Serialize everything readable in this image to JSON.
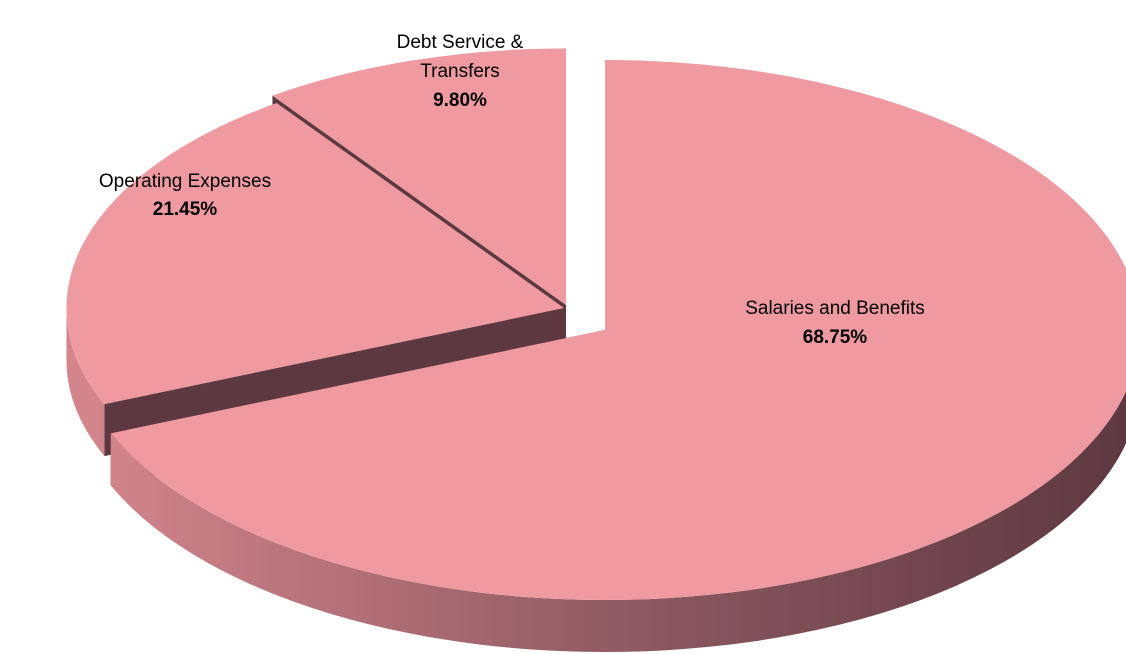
{
  "chart_data": {
    "type": "pie",
    "title": "",
    "style": "3d-exploded",
    "slices": [
      {
        "label_lines": [
          "Salaries and Benefits"
        ],
        "value": 68.75,
        "value_label": "68.75%"
      },
      {
        "label_lines": [
          "Operating Expenses"
        ],
        "value": 21.45,
        "value_label": "21.45%"
      },
      {
        "label_lines": [
          "Debt Service &",
          "Transfers"
        ],
        "value": 9.8,
        "value_label": "9.80%"
      }
    ],
    "colors": {
      "top": "#ef9aa1",
      "side_light": "#d4858c",
      "side_dark": "#5e3840"
    },
    "legend": "none"
  }
}
